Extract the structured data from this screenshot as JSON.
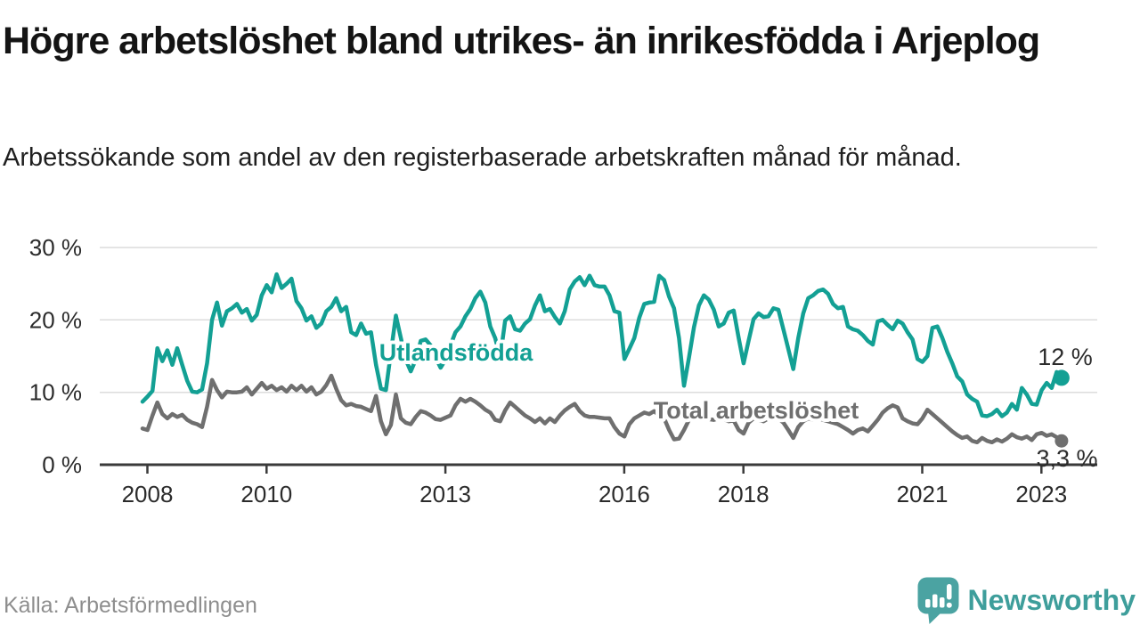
{
  "header": {
    "title": "Högre arbetslöshet bland utrikes- än inrikesfödda i Arjeplog",
    "subtitle": "Arbetssökande som andel av den registerbaserade arbetskraften månad för månad."
  },
  "footer": {
    "source": "Källa: Arbetsförmedlingen",
    "logo_text": "Newsworthy"
  },
  "colors": {
    "accent_teal": "#13a094",
    "series_gray": "#6f6f6f",
    "axis": "#3a3a3a",
    "axis_text": "#2b2b2b",
    "grid": "#dcdcdc",
    "end_label_text": "#2b2b2b",
    "logo_bubble": "#4ba3a2",
    "logo_text_color": "#3e9e9b"
  },
  "chart_data": {
    "type": "line",
    "title": "Högre arbetslöshet bland utrikes- än inrikesfödda i Arjeplog",
    "subtitle": "Arbetssökande som andel av den registerbaserade arbetskraften månad för månad.",
    "frequency": "monthly",
    "x_range": [
      "2008-01",
      "2023-06"
    ],
    "ylim": [
      0,
      30
    ],
    "grid": "horizontal",
    "legend": "inline-labels",
    "y_ticks": [
      {
        "value": 0,
        "label": "0 %"
      },
      {
        "value": 10,
        "label": "10 %"
      },
      {
        "value": 20,
        "label": "20 %"
      },
      {
        "value": 30,
        "label": "30 %"
      }
    ],
    "x_ticks": [
      {
        "year": 2008,
        "label": "2008"
      },
      {
        "year": 2010,
        "label": "2010"
      },
      {
        "year": 2013,
        "label": "2013"
      },
      {
        "year": 2016,
        "label": "2016"
      },
      {
        "year": 2018,
        "label": "2018"
      },
      {
        "year": 2021,
        "label": "2021"
      },
      {
        "year": 2023,
        "label": "2023"
      }
    ],
    "series": [
      {
        "id": "utlandsfodda",
        "name": "Utlandsfödda",
        "color": "#13a094",
        "end_label": "12 %",
        "end_value": 12.0,
        "values": [
          8.7,
          9.4,
          10.2,
          16.1,
          14.3,
          15.8,
          13.8,
          16.1,
          13.8,
          11.6,
          10.1,
          10.0,
          10.4,
          14.0,
          20.0,
          22.4,
          19.2,
          21.2,
          21.6,
          22.2,
          21.0,
          21.5,
          19.9,
          20.7,
          23.4,
          24.8,
          23.8,
          26.3,
          24.4,
          25.0,
          25.7,
          22.6,
          21.6,
          19.9,
          20.5,
          18.9,
          19.5,
          21.2,
          21.8,
          23.0,
          21.2,
          21.8,
          18.3,
          17.9,
          19.5,
          18.1,
          18.3,
          13.8,
          10.5,
          10.3,
          15.5,
          20.6,
          17.5,
          14.5,
          12.9,
          14.5,
          17.1,
          17.3,
          16.5,
          14.8,
          13.4,
          14.5,
          16.5,
          18.3,
          19.1,
          20.5,
          21.5,
          23.0,
          23.9,
          22.4,
          19.1,
          17.5,
          14.8,
          19.9,
          20.5,
          18.7,
          18.5,
          19.5,
          20.1,
          22.0,
          23.4,
          21.2,
          21.5,
          20.4,
          19.5,
          21.2,
          24.2,
          25.3,
          25.9,
          24.8,
          26.1,
          24.8,
          24.6,
          24.6,
          23.4,
          21.2,
          21.0,
          14.6,
          16.0,
          17.5,
          20.3,
          22.2,
          22.4,
          22.5,
          26.1,
          25.5,
          23.2,
          21.6,
          17.5,
          10.9,
          14.8,
          19.0,
          22.0,
          23.4,
          22.8,
          21.4,
          19.1,
          19.5,
          21.0,
          21.3,
          17.5,
          14.0,
          17.1,
          20.1,
          20.9,
          20.4,
          20.5,
          21.6,
          21.4,
          18.7,
          16.0,
          13.2,
          17.5,
          20.9,
          23.0,
          23.4,
          24.0,
          24.2,
          23.6,
          22.2,
          21.6,
          21.8,
          19.1,
          18.7,
          18.5,
          17.9,
          17.1,
          16.6,
          19.8,
          20.0,
          19.3,
          18.7,
          19.9,
          19.5,
          18.3,
          17.3,
          14.6,
          14.2,
          15.0,
          18.9,
          19.1,
          17.5,
          15.6,
          14.0,
          12.2,
          11.5,
          9.7,
          9.1,
          8.7,
          6.8,
          6.7,
          7.0,
          7.6,
          6.7,
          7.2,
          8.4,
          7.6,
          10.6,
          9.7,
          8.4,
          8.3,
          10.3,
          11.3,
          10.6,
          12.8,
          12.0
        ]
      },
      {
        "id": "total-arbetsloshet",
        "name": "Total arbetslöshet",
        "color": "#6f6f6f",
        "end_label": "3,3 %",
        "end_value": 3.3,
        "values": [
          5.0,
          4.8,
          6.8,
          8.6,
          7.0,
          6.4,
          7.0,
          6.6,
          6.9,
          6.2,
          5.8,
          5.6,
          5.2,
          8.0,
          11.7,
          10.3,
          9.3,
          10.1,
          10.0,
          10.0,
          10.1,
          10.7,
          9.7,
          10.5,
          11.3,
          10.5,
          10.9,
          10.3,
          10.7,
          10.1,
          10.9,
          10.3,
          10.9,
          10.1,
          10.7,
          9.7,
          10.1,
          11.0,
          12.3,
          10.5,
          8.9,
          8.2,
          8.4,
          8.1,
          8.0,
          7.7,
          7.4,
          9.5,
          6.0,
          4.2,
          5.5,
          9.7,
          6.4,
          5.8,
          5.6,
          6.6,
          7.4,
          7.2,
          6.8,
          6.3,
          6.2,
          6.5,
          6.8,
          8.2,
          9.1,
          8.7,
          9.1,
          8.7,
          8.2,
          7.6,
          7.2,
          6.2,
          6.0,
          7.5,
          8.6,
          8.0,
          7.4,
          6.8,
          6.4,
          5.9,
          6.4,
          5.7,
          6.4,
          5.9,
          6.8,
          7.5,
          8.0,
          8.4,
          7.4,
          6.8,
          6.6,
          6.6,
          6.5,
          6.4,
          6.4,
          5.2,
          4.3,
          3.9,
          5.6,
          6.4,
          6.8,
          7.2,
          7.0,
          7.4,
          6.8,
          6.4,
          4.8,
          3.5,
          3.6,
          4.8,
          6.2,
          6.6,
          6.5,
          6.4,
          6.3,
          6.2,
          6.4,
          6.3,
          6.0,
          6.1,
          4.8,
          4.3,
          5.8,
          6.4,
          6.2,
          6.0,
          6.4,
          6.2,
          6.4,
          5.8,
          4.8,
          3.7,
          5.2,
          6.0,
          6.4,
          6.2,
          6.4,
          6.2,
          6.0,
          5.8,
          5.6,
          5.2,
          4.8,
          4.3,
          4.8,
          5.0,
          4.6,
          5.4,
          6.2,
          7.2,
          7.8,
          8.2,
          7.9,
          6.4,
          6.0,
          5.7,
          5.6,
          6.4,
          7.6,
          7.0,
          6.4,
          5.8,
          5.2,
          4.6,
          4.1,
          3.7,
          3.9,
          3.3,
          3.1,
          3.7,
          3.3,
          3.1,
          3.5,
          3.2,
          3.6,
          4.2,
          3.8,
          3.6,
          3.9,
          3.4,
          4.2,
          4.4,
          4.0,
          4.2,
          3.8,
          3.3
        ]
      }
    ]
  }
}
